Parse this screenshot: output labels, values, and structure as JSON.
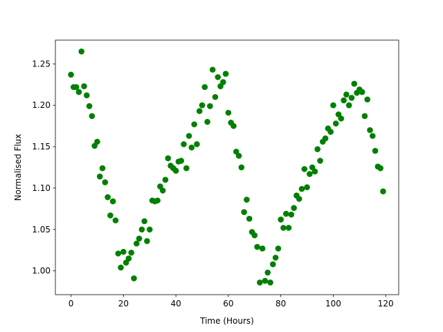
{
  "chart_data": {
    "type": "scatter",
    "xlabel": "Time (Hours)",
    "ylabel": "Normalised Flux",
    "color": "#008000",
    "xlim": [
      -5.95,
      124.95
    ],
    "ylim": [
      0.9713,
      1.2787
    ],
    "xticks": [
      0,
      20,
      40,
      60,
      80,
      100,
      120
    ],
    "yticks": [
      {
        "value": 1.0,
        "label": "1.00"
      },
      {
        "value": 1.05,
        "label": "1.05"
      },
      {
        "value": 1.1,
        "label": "1.10"
      },
      {
        "value": 1.15,
        "label": "1.15"
      },
      {
        "value": 1.2,
        "label": "1.20"
      },
      {
        "value": 1.25,
        "label": "1.25"
      }
    ],
    "x": [
      0,
      1,
      2,
      3,
      4,
      5,
      6,
      7,
      8,
      9,
      10,
      11,
      12,
      13,
      14,
      15,
      16,
      17,
      18,
      19,
      20,
      21,
      22,
      23,
      24,
      25,
      26,
      27,
      28,
      29,
      30,
      31,
      32,
      33,
      34,
      35,
      36,
      37,
      38,
      39,
      40,
      41,
      42,
      43,
      44,
      45,
      46,
      47,
      48,
      49,
      50,
      51,
      52,
      53,
      54,
      55,
      56,
      57,
      58,
      59,
      60,
      61,
      62,
      63,
      64,
      65,
      66,
      67,
      68,
      69,
      70,
      71,
      72,
      73,
      74,
      75,
      76,
      77,
      78,
      79,
      80,
      81,
      82,
      83,
      84,
      85,
      86,
      87,
      88,
      89,
      90,
      91,
      92,
      93,
      94,
      95,
      96,
      97,
      98,
      99,
      100,
      101,
      102,
      103,
      104,
      105,
      106,
      107,
      108,
      109,
      110,
      111,
      112,
      113,
      114,
      115,
      116,
      117,
      118,
      119
    ],
    "values": [
      1.237,
      1.222,
      1.222,
      1.216,
      1.265,
      1.223,
      1.212,
      1.199,
      1.187,
      1.151,
      1.156,
      1.114,
      1.124,
      1.107,
      1.089,
      1.067,
      1.084,
      1.061,
      1.021,
      1.004,
      1.023,
      1.01,
      1.015,
      1.022,
      0.991,
      1.033,
      1.039,
      1.05,
      1.06,
      1.036,
      1.05,
      1.085,
      1.084,
      1.085,
      1.102,
      1.097,
      1.11,
      1.136,
      1.127,
      1.124,
      1.121,
      1.132,
      1.133,
      1.153,
      1.124,
      1.163,
      1.149,
      1.177,
      1.153,
      1.193,
      1.2,
      1.222,
      1.18,
      1.199,
      1.243,
      1.21,
      1.234,
      1.223,
      1.228,
      1.238,
      1.191,
      1.179,
      1.175,
      1.144,
      1.139,
      1.125,
      1.071,
      1.086,
      1.063,
      1.047,
      1.043,
      1.029,
      0.986,
      1.027,
      0.988,
      0.998,
      0.986,
      1.008,
      1.016,
      1.027,
      1.062,
      1.052,
      1.069,
      1.052,
      1.068,
      1.076,
      1.091,
      1.087,
      1.099,
      1.123,
      1.101,
      1.117,
      1.125,
      1.12,
      1.147,
      1.133,
      1.156,
      1.16,
      1.172,
      1.168,
      1.2,
      1.178,
      1.189,
      1.184,
      1.206,
      1.213,
      1.2,
      1.209,
      1.226,
      1.215,
      1.219,
      1.216,
      1.187,
      1.207,
      1.17,
      1.163,
      1.145,
      1.126,
      1.124,
      1.096
    ]
  }
}
